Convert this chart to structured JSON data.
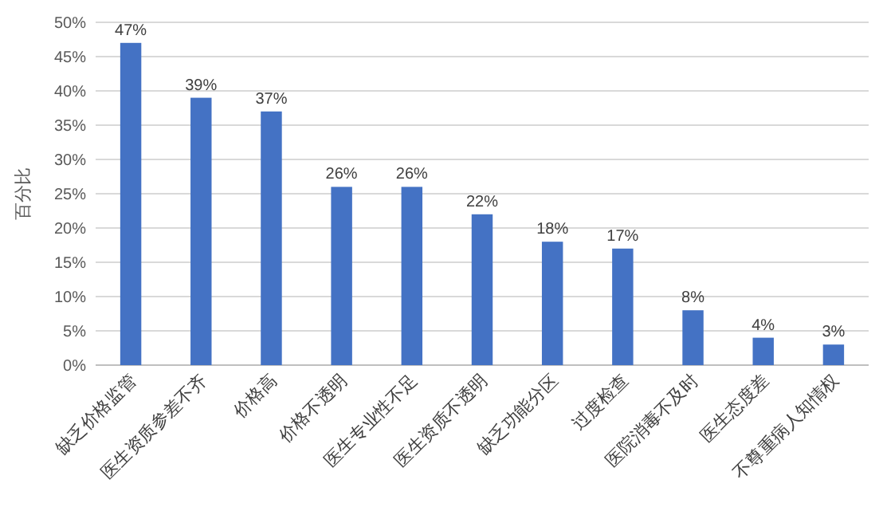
{
  "chart_data": {
    "type": "bar",
    "ylabel": "百分比",
    "categories": [
      "缺乏价格监管",
      "医生资质参差不齐",
      "价格高",
      "价格不透明",
      "医生专业性不足",
      "医生资质不透明",
      "缺乏功能分区",
      "过度检查",
      "医院消毒不及时",
      "医生态度差",
      "不尊重病人知情权"
    ],
    "values": [
      47,
      39,
      37,
      26,
      26,
      22,
      18,
      17,
      8,
      4,
      3
    ],
    "value_labels": [
      "47%",
      "39%",
      "37%",
      "26%",
      "26%",
      "22%",
      "18%",
      "17%",
      "8%",
      "4%",
      "3%"
    ],
    "color": "#4472c4",
    "ylim": [
      0,
      50
    ],
    "yticks": [
      {
        "value": 0,
        "label": "0%"
      },
      {
        "value": 5,
        "label": "5%"
      },
      {
        "value": 10,
        "label": "10%"
      },
      {
        "value": 15,
        "label": "15%"
      },
      {
        "value": 20,
        "label": "20%"
      },
      {
        "value": 25,
        "label": "25%"
      },
      {
        "value": 30,
        "label": "30%"
      },
      {
        "value": 35,
        "label": "35%"
      },
      {
        "value": 40,
        "label": "40%"
      },
      {
        "value": 45,
        "label": "45%"
      },
      {
        "value": 50,
        "label": "50%"
      }
    ],
    "grid": "y"
  }
}
